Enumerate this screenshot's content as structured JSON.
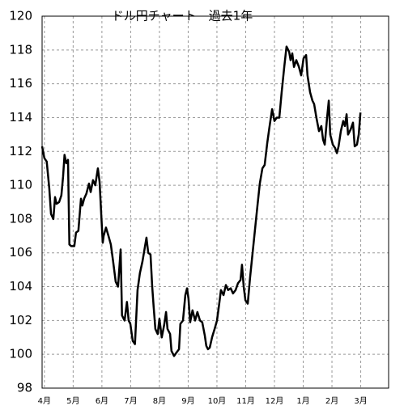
{
  "chart_data": {
    "type": "line",
    "title": "ドル円チャート　過去1年",
    "xlim": [
      -0.08,
      11.97
    ],
    "xticks": [
      {
        "value": 0,
        "label": "4月"
      },
      {
        "value": 1,
        "label": "5月"
      },
      {
        "value": 2,
        "label": "6月"
      },
      {
        "value": 3,
        "label": "7月"
      },
      {
        "value": 4,
        "label": "8月"
      },
      {
        "value": 5,
        "label": "9月"
      },
      {
        "value": 6,
        "label": "10月"
      },
      {
        "value": 7,
        "label": "11月"
      },
      {
        "value": 8,
        "label": "12月"
      },
      {
        "value": 9,
        "label": "1月"
      },
      {
        "value": 10,
        "label": "2月"
      },
      {
        "value": 11,
        "label": "3月"
      }
    ],
    "ylim": [
      98,
      120
    ],
    "yticks": [
      98,
      100,
      102,
      104,
      106,
      108,
      110,
      112,
      114,
      116,
      118,
      120
    ],
    "grid": true,
    "x": [
      -0.08,
      0,
      0.08,
      0.17,
      0.23,
      0.31,
      0.37,
      0.42,
      0.51,
      0.59,
      0.65,
      0.7,
      0.76,
      0.82,
      0.87,
      0.93,
      1.04,
      1.1,
      1.18,
      1.27,
      1.32,
      1.38,
      1.46,
      1.55,
      1.61,
      1.69,
      1.77,
      1.86,
      1.92,
      1.97,
      2.03,
      2.06,
      2.14,
      2.23,
      2.31,
      2.39,
      2.48,
      2.56,
      2.65,
      2.7,
      2.79,
      2.87,
      2.93,
      2.99,
      3.07,
      3.15,
      3.24,
      3.32,
      3.41,
      3.49,
      3.55,
      3.61,
      3.69,
      3.75,
      3.8,
      3.86,
      3.94,
      4.0,
      4.08,
      4.17,
      4.23,
      4.28,
      4.37,
      4.42,
      4.51,
      4.59,
      4.68,
      4.73,
      4.82,
      4.9,
      4.96,
      5.01,
      5.07,
      5.15,
      5.24,
      5.32,
      5.41,
      5.49,
      5.58,
      5.63,
      5.69,
      5.75,
      5.83,
      5.92,
      6.0,
      6.08,
      6.14,
      6.23,
      6.31,
      6.39,
      6.48,
      6.56,
      6.65,
      6.73,
      6.82,
      6.87,
      6.93,
      6.99,
      7.07,
      7.15,
      7.24,
      7.32,
      7.41,
      7.49,
      7.58,
      7.66,
      7.75,
      7.83,
      7.92,
      8.0,
      8.08,
      8.17,
      8.25,
      8.34,
      8.42,
      8.51,
      8.56,
      8.62,
      8.68,
      8.76,
      8.85,
      8.93,
      9.01,
      9.1,
      9.15,
      9.24,
      9.32,
      9.38,
      9.46,
      9.55,
      9.63,
      9.69,
      9.75,
      9.83,
      9.89,
      9.94,
      10.03,
      10.11,
      10.17,
      10.23,
      10.31,
      10.39,
      10.45,
      10.51,
      10.56,
      10.65,
      10.73,
      10.79,
      10.87,
      10.93,
      10.99
    ],
    "series": [
      {
        "color": "#000000",
        "values": [
          112.3,
          111.6,
          111.4,
          109.8,
          108.3,
          108.0,
          109.3,
          108.9,
          109.0,
          109.4,
          110.5,
          111.8,
          111.3,
          111.5,
          106.5,
          106.4,
          106.4,
          107.2,
          107.3,
          109.2,
          108.8,
          109.2,
          109.5,
          110.1,
          109.6,
          110.3,
          110.0,
          111.0,
          110.2,
          108.5,
          106.6,
          107.0,
          107.5,
          107.0,
          106.5,
          105.5,
          104.3,
          104.0,
          106.2,
          102.3,
          102.0,
          103.1,
          102.0,
          101.8,
          100.8,
          100.6,
          103.8,
          104.8,
          105.5,
          106.3,
          106.9,
          106.0,
          105.9,
          104.0,
          102.8,
          101.5,
          101.2,
          102.1,
          101.0,
          101.8,
          102.5,
          101.5,
          101.2,
          100.2,
          99.9,
          100.1,
          100.3,
          101.8,
          102.0,
          103.5,
          103.9,
          103.3,
          101.9,
          102.6,
          102.0,
          102.5,
          102.0,
          101.9,
          101.1,
          100.5,
          100.3,
          100.4,
          101.0,
          101.5,
          102.0,
          103.0,
          103.8,
          103.5,
          104.1,
          103.8,
          103.9,
          103.6,
          103.8,
          104.2,
          104.4,
          105.3,
          104.0,
          103.2,
          103.0,
          104.5,
          106.0,
          107.3,
          108.8,
          110.1,
          111.0,
          111.2,
          112.5,
          113.5,
          114.5,
          113.8,
          114.0,
          114.0,
          115.5,
          117.0,
          118.2,
          117.9,
          117.4,
          117.8,
          117.0,
          117.4,
          117.0,
          116.5,
          117.5,
          117.7,
          116.5,
          115.5,
          115.0,
          114.8,
          114.0,
          113.2,
          113.5,
          112.7,
          112.4,
          114.0,
          115.0,
          113.0,
          112.4,
          112.2,
          111.9,
          112.3,
          113.2,
          113.8,
          113.5,
          114.2,
          113.0,
          113.3,
          113.7,
          112.3,
          112.4,
          113.0,
          114.3
        ]
      }
    ]
  }
}
